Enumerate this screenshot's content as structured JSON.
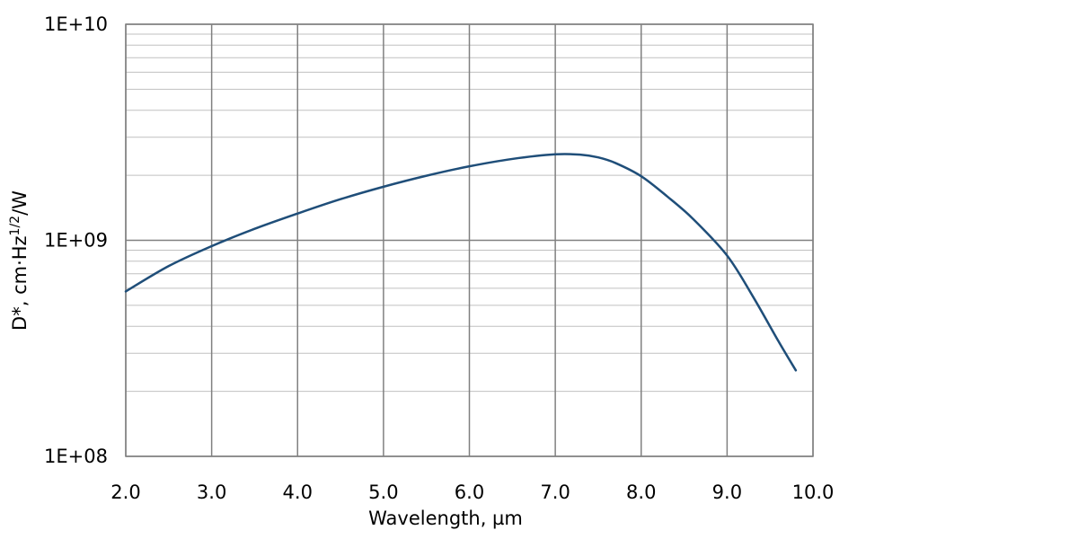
{
  "chart_data": {
    "type": "line",
    "xlabel": "Wavelength, µm",
    "ylabel": {
      "prefix": "D*",
      "unit_main": ", cm·Hz",
      "unit_sup": "1/2",
      "unit_end": "/W"
    },
    "xscale": "linear",
    "yscale": "log",
    "xlim": [
      2.0,
      10.0
    ],
    "ylim": [
      100000000,
      10000000000
    ],
    "xticks": [
      2.0,
      3.0,
      4.0,
      5.0,
      6.0,
      7.0,
      8.0,
      9.0,
      10.0
    ],
    "xtick_labels": [
      "2.0",
      "3.0",
      "4.0",
      "5.0",
      "6.0",
      "7.0",
      "8.0",
      "9.0",
      "10.0"
    ],
    "yticks": [
      100000000,
      1000000000,
      10000000000
    ],
    "ytick_labels": [
      "1E+08",
      "1E+09",
      "1E+10"
    ],
    "grid": true,
    "minor_grid_y": true,
    "colors": {
      "line": "#1f4e79",
      "grid_major": "#808080",
      "grid_minor": "#c0c0c0",
      "axis": "#808080"
    },
    "series": [
      {
        "x": [
          2.0,
          2.5,
          3.0,
          3.5,
          4.0,
          4.5,
          5.0,
          5.5,
          6.0,
          6.5,
          7.0,
          7.3,
          7.5,
          7.7,
          8.0,
          8.3,
          8.6,
          9.0,
          9.3,
          9.6,
          9.8
        ],
        "y": [
          580000000,
          760000000,
          940000000,
          1130000000,
          1330000000,
          1550000000,
          1770000000,
          1990000000,
          2200000000,
          2380000000,
          2500000000,
          2490000000,
          2420000000,
          2280000000,
          1980000000,
          1600000000,
          1260000000,
          850000000,
          550000000,
          340000000,
          250000000
        ]
      }
    ]
  }
}
